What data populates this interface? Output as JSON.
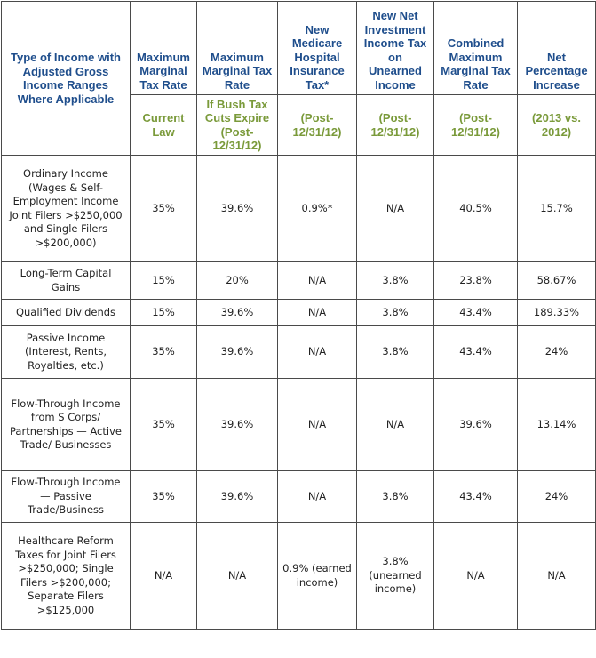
{
  "headers": {
    "type_of_income": "Type of Income with Adjusted Gross Income Ranges Where Applicable",
    "columns": [
      {
        "title": "Maximum Marginal Tax Rate",
        "sub": "Current Law"
      },
      {
        "title": "Maximum Marginal Tax Rate",
        "sub": "If Bush Tax Cuts Expire (Post-12/31/12)"
      },
      {
        "title": "New Medicare Hospital Insurance Tax*",
        "sub": "(Post-12/31/12)"
      },
      {
        "title": "New Net Investment Income Tax on Unearned Income",
        "sub": "(Post-12/31/12)"
      },
      {
        "title": "Combined Maximum Marginal Tax Rate",
        "sub": "(Post-12/31/12)"
      },
      {
        "title": "Net Percentage Increase",
        "sub": "(2013 vs. 2012)"
      }
    ]
  },
  "rows": [
    {
      "type": "Ordinary Income (Wages & Self-Employment Income Joint Filers >$250,000 and Single Filers >$200,000)",
      "values": [
        "35%",
        "39.6%",
        "0.9%*",
        "N/A",
        "40.5%",
        "15.7%"
      ]
    },
    {
      "type": "Long-Term Capital Gains",
      "values": [
        "15%",
        "20%",
        "N/A",
        "3.8%",
        "23.8%",
        "58.67%"
      ]
    },
    {
      "type": "Qualified Dividends",
      "values": [
        "15%",
        "39.6%",
        "N/A",
        "3.8%",
        "43.4%",
        "189.33%"
      ]
    },
    {
      "type": "Passive Income (Interest, Rents, Royalties, etc.)",
      "values": [
        "35%",
        "39.6%",
        "N/A",
        "3.8%",
        "43.4%",
        "24%"
      ]
    },
    {
      "type": "Flow-Through Income from S Corps/ Partnerships — Active Trade/ Businesses",
      "values": [
        "35%",
        "39.6%",
        "N/A",
        "N/A",
        "39.6%",
        "13.14%"
      ]
    },
    {
      "type": "Flow-Through Income — Passive Trade/Business",
      "values": [
        "35%",
        "39.6%",
        "N/A",
        "3.8%",
        "43.4%",
        "24%"
      ]
    },
    {
      "type": "Healthcare Reform Taxes for Joint Filers >$250,000; Single Filers >$200,000; Separate Filers >$125,000",
      "values": [
        "N/A",
        "N/A",
        "0.9% (earned income)",
        "3.8% (unearned income)",
        "N/A",
        "N/A"
      ]
    }
  ]
}
